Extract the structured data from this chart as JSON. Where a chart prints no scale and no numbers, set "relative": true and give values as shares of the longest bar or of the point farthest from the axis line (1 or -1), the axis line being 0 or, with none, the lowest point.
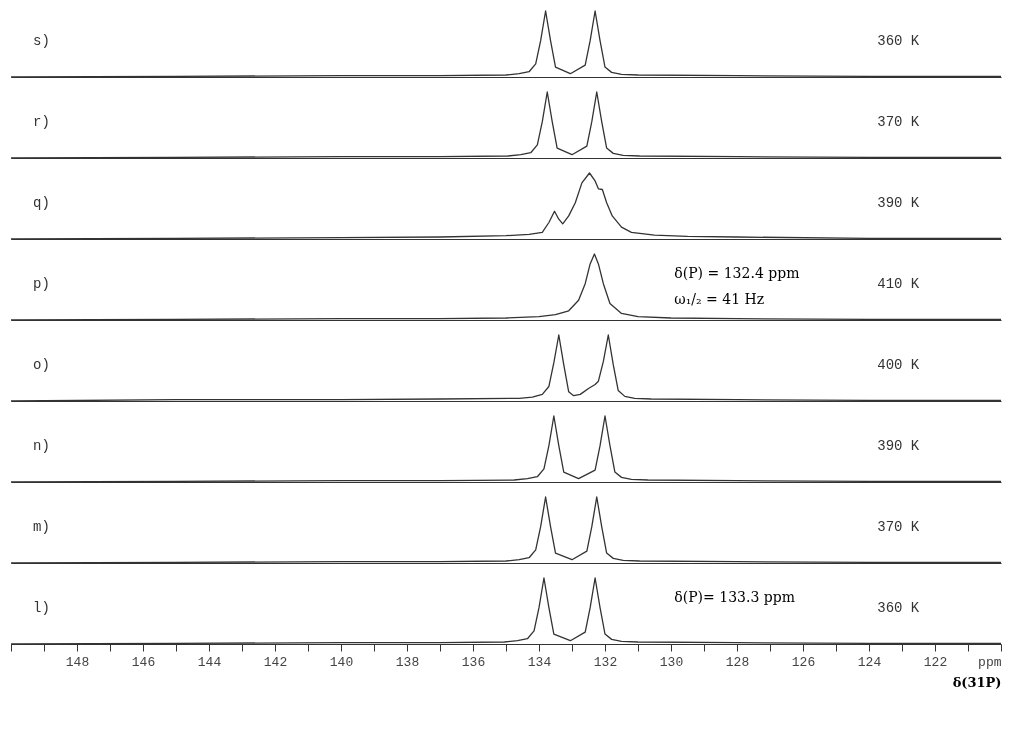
{
  "chart_data": [
    {
      "type": "line",
      "relative": true,
      "xlim": [
        150,
        120
      ],
      "tick_labels": false,
      "grid": false,
      "marker": "none",
      "line_style": "solid",
      "annotations": [
        "s)",
        "360 K"
      ],
      "x": [
        150,
        145,
        140,
        137,
        135.0,
        134.6,
        134.3,
        134.1,
        133.95,
        133.8,
        133.65,
        133.5,
        133.05,
        132.6,
        132.45,
        132.3,
        132.15,
        132.0,
        131.8,
        131.5,
        131.0,
        128,
        124,
        120
      ],
      "series": [
        {
          "color": "#333333",
          "values": [
            0,
            0.01,
            0.02,
            0.02,
            0.03,
            0.05,
            0.08,
            0.2,
            0.55,
            1.0,
            0.55,
            0.15,
            0.05,
            0.18,
            0.55,
            1.0,
            0.55,
            0.15,
            0.07,
            0.04,
            0.03,
            0.02,
            0.01,
            0.01
          ]
        }
      ]
    },
    {
      "type": "line",
      "relative": true,
      "xlim": [
        150,
        120
      ],
      "tick_labels": false,
      "grid": false,
      "marker": "none",
      "line_style": "solid",
      "annotations": [
        "r)",
        "370 K"
      ],
      "x": [
        150,
        145,
        140,
        137,
        134.95,
        134.55,
        134.25,
        134.05,
        133.9,
        133.75,
        133.6,
        133.45,
        133.0,
        132.55,
        132.4,
        132.25,
        132.1,
        131.95,
        131.75,
        131.45,
        130.95,
        128,
        124,
        120
      ],
      "series": [
        {
          "color": "#333333",
          "values": [
            0,
            0.01,
            0.02,
            0.02,
            0.03,
            0.05,
            0.08,
            0.2,
            0.55,
            1.0,
            0.55,
            0.15,
            0.05,
            0.18,
            0.55,
            1.0,
            0.55,
            0.15,
            0.07,
            0.04,
            0.03,
            0.02,
            0.01,
            0.01
          ]
        }
      ]
    },
    {
      "type": "line",
      "relative": true,
      "xlim": [
        150,
        120
      ],
      "tick_labels": false,
      "grid": false,
      "marker": "none",
      "line_style": "solid",
      "annotations": [
        "q)",
        "390 K"
      ],
      "x": [
        150,
        145,
        140,
        137,
        135,
        134.3,
        133.9,
        133.7,
        133.53,
        133.4,
        133.28,
        133.1,
        132.9,
        132.7,
        132.47,
        132.3,
        132.2,
        132.08,
        131.95,
        131.78,
        131.5,
        131.2,
        130.5,
        129.5,
        128,
        124,
        120
      ],
      "series": [
        {
          "color": "#333333",
          "values": [
            0,
            0.01,
            0.02,
            0.03,
            0.05,
            0.07,
            0.1,
            0.25,
            0.42,
            0.3,
            0.23,
            0.35,
            0.55,
            0.85,
            1.0,
            0.88,
            0.76,
            0.75,
            0.55,
            0.35,
            0.18,
            0.1,
            0.06,
            0.04,
            0.03,
            0.01,
            0.01
          ]
        }
      ]
    },
    {
      "type": "line",
      "relative": true,
      "xlim": [
        150,
        120
      ],
      "tick_labels": false,
      "grid": false,
      "marker": "none",
      "line_style": "solid",
      "annotations": [
        "p)",
        "410 K",
        "δ(P) = 132.4 ppm",
        "ω₁/₂ = 41 Hz"
      ],
      "x": [
        150,
        145,
        140,
        137,
        135,
        134,
        133.5,
        133.1,
        132.8,
        132.6,
        132.45,
        132.32,
        132.2,
        132.05,
        131.85,
        131.5,
        131,
        130,
        128,
        124,
        120
      ],
      "series": [
        {
          "color": "#333333",
          "values": [
            0,
            0.01,
            0.02,
            0.02,
            0.03,
            0.05,
            0.08,
            0.14,
            0.3,
            0.55,
            0.85,
            1.0,
            0.85,
            0.55,
            0.25,
            0.1,
            0.05,
            0.03,
            0.02,
            0.01,
            0.01
          ]
        }
      ]
    },
    {
      "type": "line",
      "relative": true,
      "xlim": [
        150,
        120
      ],
      "tick_labels": false,
      "grid": false,
      "marker": "none",
      "line_style": "solid",
      "annotations": [
        "o)",
        "400 K"
      ],
      "x": [
        150,
        145,
        140,
        137,
        134.6,
        134.2,
        133.9,
        133.7,
        133.55,
        133.4,
        133.25,
        133.1,
        132.95,
        132.75,
        132.5,
        132.3,
        132.2,
        132.05,
        131.9,
        131.75,
        131.6,
        131.4,
        131.1,
        130.6,
        128,
        124,
        120
      ],
      "series": [
        {
          "color": "#333333",
          "values": [
            0,
            0.02,
            0.02,
            0.03,
            0.04,
            0.06,
            0.1,
            0.22,
            0.58,
            1.0,
            0.55,
            0.14,
            0.08,
            0.1,
            0.19,
            0.25,
            0.3,
            0.6,
            1.0,
            0.55,
            0.16,
            0.07,
            0.04,
            0.03,
            0.02,
            0.01,
            0.01
          ]
        }
      ]
    },
    {
      "type": "line",
      "relative": true,
      "xlim": [
        150,
        120
      ],
      "tick_labels": false,
      "grid": false,
      "marker": "none",
      "line_style": "solid",
      "annotations": [
        "n)",
        "390 K"
      ],
      "x": [
        150,
        145,
        140,
        137,
        134.75,
        134.35,
        134.05,
        133.85,
        133.7,
        133.55,
        133.4,
        133.25,
        132.8,
        132.3,
        132.15,
        132.0,
        131.85,
        131.7,
        131.5,
        131.2,
        130.7,
        128,
        124,
        120
      ],
      "series": [
        {
          "color": "#333333",
          "values": [
            0,
            0.01,
            0.02,
            0.02,
            0.03,
            0.05,
            0.08,
            0.2,
            0.55,
            1.0,
            0.55,
            0.15,
            0.05,
            0.18,
            0.55,
            1.0,
            0.55,
            0.15,
            0.07,
            0.04,
            0.03,
            0.02,
            0.01,
            0.01
          ]
        }
      ]
    },
    {
      "type": "line",
      "relative": true,
      "xlim": [
        150,
        120
      ],
      "tick_labels": false,
      "grid": false,
      "marker": "none",
      "line_style": "solid",
      "annotations": [
        "m)",
        "370 K"
      ],
      "x": [
        150,
        145,
        140,
        137,
        135.0,
        134.6,
        134.3,
        134.1,
        133.95,
        133.8,
        133.65,
        133.5,
        133.0,
        132.55,
        132.4,
        132.25,
        132.1,
        131.95,
        131.75,
        131.45,
        130.95,
        128,
        124,
        120
      ],
      "series": [
        {
          "color": "#333333",
          "values": [
            0,
            0.01,
            0.02,
            0.02,
            0.03,
            0.05,
            0.08,
            0.2,
            0.55,
            1.0,
            0.55,
            0.15,
            0.05,
            0.18,
            0.55,
            1.0,
            0.55,
            0.15,
            0.07,
            0.04,
            0.03,
            0.02,
            0.01,
            0.01
          ]
        }
      ]
    },
    {
      "type": "line",
      "relative": true,
      "xlim": [
        150,
        120
      ],
      "xlabel": "δ(31P)",
      "grid": false,
      "marker": "none",
      "line_style": "solid",
      "annotations": [
        "l)",
        "360 K",
        "δ(P)= 133.3 ppm"
      ],
      "xticks": [
        {
          "value": 150,
          "label": null
        },
        {
          "value": 149,
          "label": null
        },
        148,
        {
          "value": 147,
          "label": null
        },
        146,
        {
          "value": 145,
          "label": null
        },
        144,
        {
          "value": 143,
          "label": null
        },
        142,
        {
          "value": 141,
          "label": null
        },
        140,
        {
          "value": 139,
          "label": null
        },
        138,
        {
          "value": 137,
          "label": null
        },
        136,
        {
          "value": 135,
          "label": null
        },
        134,
        {
          "value": 133,
          "label": null
        },
        132,
        {
          "value": 131,
          "label": null
        },
        130,
        {
          "value": 129,
          "label": null
        },
        128,
        {
          "value": 127,
          "label": null
        },
        126,
        {
          "value": 125,
          "label": null
        },
        124,
        {
          "value": 123,
          "label": null
        },
        122,
        {
          "value": 121,
          "label": null
        },
        {
          "value": 120,
          "label": "ppm"
        }
      ],
      "x": [
        150,
        145,
        140,
        137,
        135.05,
        134.65,
        134.35,
        134.15,
        134.0,
        133.85,
        133.7,
        133.55,
        133.05,
        132.6,
        132.45,
        132.3,
        132.15,
        132.0,
        131.8,
        131.5,
        131.0,
        128,
        124,
        120
      ],
      "series": [
        {
          "color": "#333333",
          "values": [
            0,
            0.01,
            0.02,
            0.02,
            0.03,
            0.05,
            0.08,
            0.2,
            0.55,
            1.0,
            0.55,
            0.15,
            0.05,
            0.18,
            0.55,
            1.0,
            0.55,
            0.15,
            0.07,
            0.04,
            0.03,
            0.02,
            0.01,
            0.01
          ]
        }
      ]
    }
  ]
}
